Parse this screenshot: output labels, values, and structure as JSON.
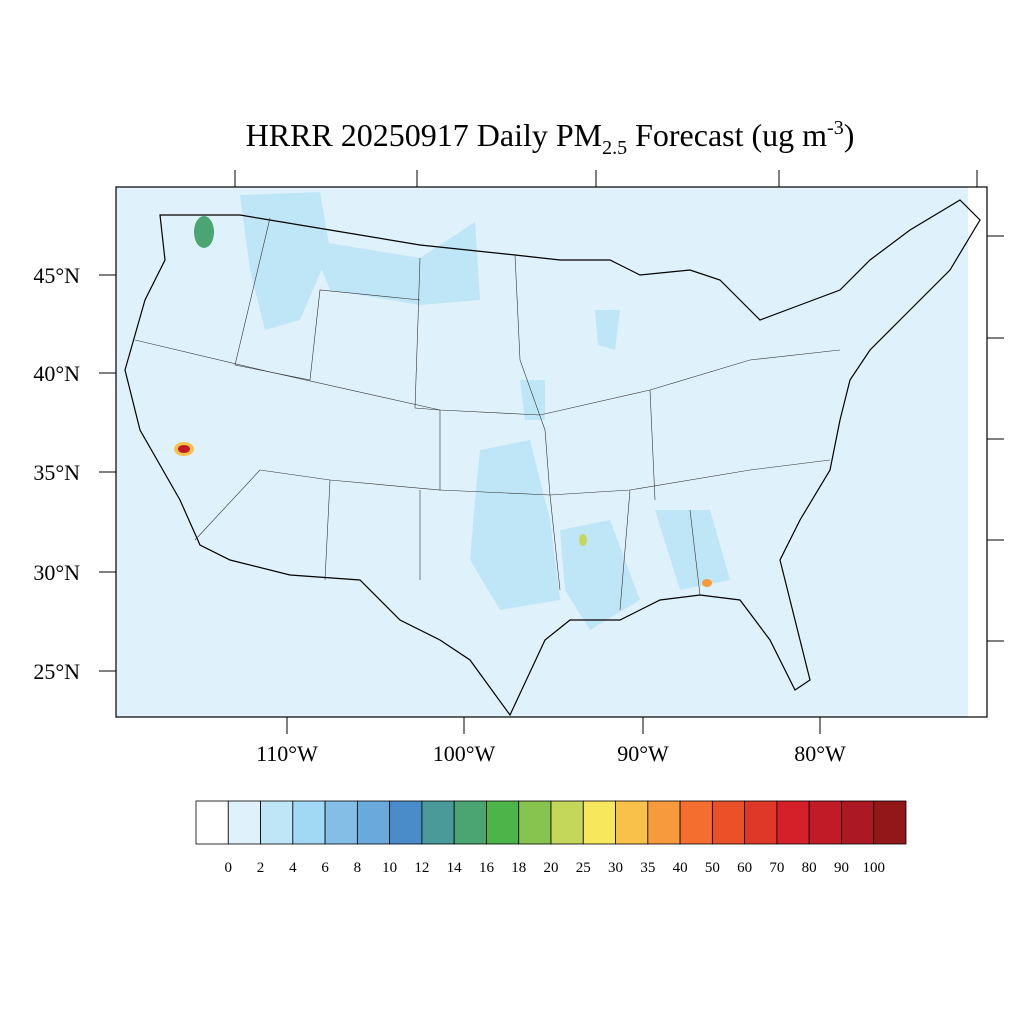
{
  "header": {
    "title": {
      "main": "HRRR 20250917 Daily PM",
      "sub": "2.5",
      "mid": " Forecast (ug m",
      "sup": "-3",
      "end": ")"
    }
  },
  "map": {
    "lat_labels": [
      "45°N",
      "40°N",
      "35°N",
      "30°N",
      "25°N"
    ],
    "lon_labels": [
      "110°W",
      "100°W",
      "90°W",
      "80°W"
    ]
  },
  "colorbar": {
    "labels": [
      "0",
      "2",
      "4",
      "6",
      "8",
      "10",
      "12",
      "14",
      "16",
      "18",
      "20",
      "25",
      "30",
      "35",
      "40",
      "50",
      "60",
      "70",
      "80",
      "90",
      "100"
    ],
    "colors": [
      "#ffffff",
      "#dff1fb",
      "#bfe6f7",
      "#a1d8f3",
      "#84bde6",
      "#69a9dc",
      "#4a8bca",
      "#4a9a9a",
      "#4aa572",
      "#4cb449",
      "#86c44f",
      "#c4d75a",
      "#f6e75c",
      "#f9c04a",
      "#f69a3d",
      "#f36e2f",
      "#ea5129",
      "#df3828",
      "#d52029",
      "#c11b27",
      "#ac1924",
      "#921719"
    ]
  }
}
